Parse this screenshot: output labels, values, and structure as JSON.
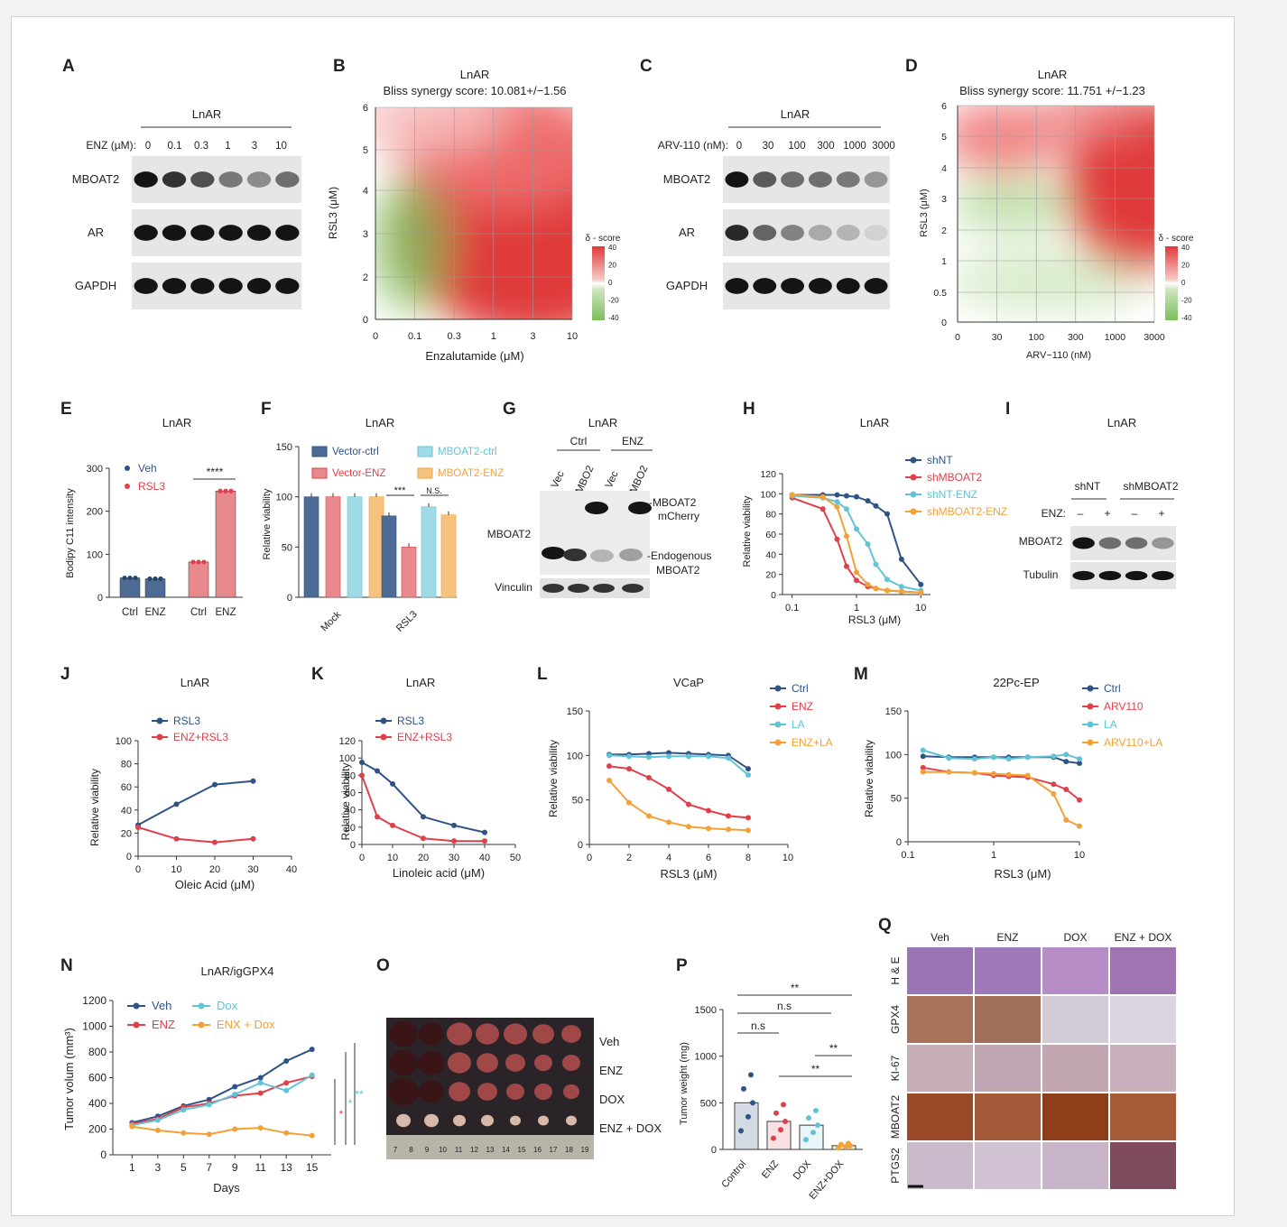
{
  "colors": {
    "navy": "#2f5385",
    "red": "#e0404a",
    "cyan": "#62c3d4",
    "orange": "#f2a136",
    "heat_red": "#e03a3a",
    "heat_green": "#7cbf5a"
  },
  "panels": {
    "A": {
      "letter": "A",
      "header": "LnAR",
      "conc_label": "ENZ (µM):",
      "concs": [
        "0",
        "0.1",
        "0.3",
        "1",
        "3",
        "10"
      ],
      "rows": [
        "MBOAT2",
        "AR",
        "GAPDH"
      ],
      "band": {
        "MBOAT2": [
          1.0,
          0.85,
          0.7,
          0.5,
          0.4,
          0.55
        ],
        "AR": [
          1,
          1,
          1,
          1,
          1,
          1
        ],
        "GAPDH": [
          1,
          1,
          1,
          1,
          1,
          1
        ]
      }
    },
    "B": {
      "letter": "B",
      "title": "LnAR",
      "subtitle": "Bliss synergy score: 10.081+/−1.56",
      "ylabel": "RSL3 (μM)",
      "xlabel": "Enzalutamide (μM)",
      "yticks": [
        "0",
        "2",
        "3",
        "4",
        "5",
        "6"
      ],
      "xticks": [
        "0",
        "0.1",
        "0.3",
        "1",
        "3",
        "10"
      ],
      "legend_title": "δ - score",
      "legend_ticks": [
        "40",
        "20",
        "0",
        "-20",
        "-40"
      ]
    },
    "C": {
      "letter": "C",
      "header": "LnAR",
      "conc_label": "ARV-110 (nM):",
      "concs": [
        "0",
        "30",
        "100",
        "300",
        "1000",
        "3000"
      ],
      "rows": [
        "MBOAT2",
        "AR",
        "GAPDH"
      ],
      "band": {
        "MBOAT2": [
          1.0,
          0.65,
          0.55,
          0.55,
          0.5,
          0.35
        ],
        "AR": [
          0.9,
          0.6,
          0.45,
          0.25,
          0.2,
          0.05
        ],
        "GAPDH": [
          1,
          1,
          1,
          1,
          1,
          1
        ]
      }
    },
    "D": {
      "letter": "D",
      "title": "LnAR",
      "subtitle": "Bliss synergy score: 11.751 +/−1.23",
      "ylabel": "RSL3 (μM)",
      "xlabel": "ARV−110 (nM)",
      "yticks": [
        "0",
        "0.5",
        "1",
        "2",
        "3",
        "4",
        "5",
        "6"
      ],
      "xticks": [
        "0",
        "30",
        "100",
        "300",
        "1000",
        "3000"
      ],
      "legend_title": "δ - score",
      "legend_ticks": [
        "40",
        "20",
        "0",
        "-20",
        "-40"
      ]
    },
    "E": {
      "letter": "E",
      "title": "LnAR",
      "ylabel": "Bodipy C11 intensity",
      "legend": [
        "Veh",
        "RSL3"
      ],
      "sig": "****"
    },
    "F": {
      "letter": "F",
      "title": "LnAR",
      "ylabel": "Relative viability",
      "legend": [
        "Vector-ctrl",
        "MBOAT2-ctrl",
        "Vector-ENZ",
        "MBOAT2-ENZ"
      ],
      "sig": [
        "***",
        "N.S."
      ]
    },
    "G": {
      "letter": "G",
      "title": "LnAR",
      "groups": [
        "Ctrl",
        "ENZ"
      ],
      "lanes": [
        "Vec",
        "MBO2",
        "Vec",
        "MBO2"
      ],
      "row_label": "MBOAT2",
      "loading": "Vinculin",
      "ann1": "-MBOAT2",
      "ann1b": "mCherry",
      "ann2": "-Endogenous",
      "ann2b": "MBOAT2"
    },
    "H": {
      "letter": "H",
      "title": "LnAR",
      "xlabel": "RSL3 (μM)",
      "ylabel": "Relative viability",
      "legend": [
        "shNT",
        "shMBOAT2",
        "shNT-ENZ",
        "shMBOAT2-ENZ"
      ]
    },
    "I": {
      "letter": "I",
      "title": "LnAR",
      "groups": [
        "shNT",
        "shMBOAT2"
      ],
      "enz_label": "ENZ:",
      "enz": [
        "–",
        "+",
        "–",
        "+"
      ],
      "rows": [
        "MBOAT2",
        "Tubulin"
      ],
      "band": {
        "MBOAT2": [
          1.0,
          0.55,
          0.55,
          0.35
        ],
        "Tubulin": [
          1,
          1,
          1,
          1
        ]
      }
    },
    "J": {
      "letter": "J",
      "title": "LnAR",
      "xlabel": "Oleic Acid (μM)",
      "ylabel": "Relative viability",
      "legend": [
        "RSL3",
        "ENZ+RSL3"
      ]
    },
    "K": {
      "letter": "K",
      "title": "LnAR",
      "xlabel": "Linoleic acid (μM)",
      "ylabel": "Relative viability",
      "legend": [
        "RSL3",
        "ENZ+RSL3"
      ]
    },
    "L": {
      "letter": "L",
      "title": "VCaP",
      "xlabel": "RSL3 (μM)",
      "ylabel": "Relative viability",
      "legend": [
        "Ctrl",
        "ENZ",
        "LA",
        "ENZ+LA"
      ]
    },
    "M": {
      "letter": "M",
      "title": "22Pc-EP",
      "xlabel": "RSL3 (μM)",
      "ylabel": "Relative viability",
      "legend": [
        "Ctrl",
        "ARV110",
        "LA",
        "ARV110+LA"
      ]
    },
    "N": {
      "letter": "N",
      "title": "LnAR/igGPX4",
      "xlabel": "Days",
      "ylabel": "Tumor volum (mm³)",
      "legend": [
        "Veh",
        "Dox",
        "ENZ",
        "ENX + Dox"
      ]
    },
    "O": {
      "letter": "O",
      "rows": [
        "Veh",
        "ENZ",
        "DOX",
        "ENZ + DOX"
      ],
      "ruler": [
        "7",
        "8",
        "9",
        "10",
        "11",
        "12",
        "13",
        "14",
        "15",
        "16",
        "17",
        "18",
        "19"
      ]
    },
    "P": {
      "letter": "P",
      "ylabel": "Tumor weight (mg)",
      "sig": [
        "**",
        "n.s",
        "n.s",
        "**",
        "**"
      ]
    },
    "Q": {
      "letter": "Q",
      "cols": [
        "Veh",
        "ENZ",
        "DOX",
        "ENZ + DOX"
      ],
      "rows": [
        "H & E",
        "GPX4",
        "KI-67",
        "MBOAT2",
        "PTGS2"
      ]
    }
  },
  "chart_data": [
    {
      "id": "E",
      "type": "bar",
      "categories": [
        "Ctrl",
        "ENZ",
        "Ctrl",
        "ENZ"
      ],
      "series": [
        {
          "name": "Veh",
          "values": [
            45,
            43,
            null,
            null
          ]
        },
        {
          "name": "RSL3",
          "values": [
            null,
            null,
            82,
            247
          ]
        }
      ],
      "ylim": [
        0,
        300
      ],
      "yticks": [
        0,
        100,
        200,
        300
      ]
    },
    {
      "id": "F",
      "type": "bar",
      "categories": [
        "Mock",
        "RSL3"
      ],
      "series": [
        {
          "name": "Vector-ctrl",
          "values": [
            100,
            81
          ]
        },
        {
          "name": "Vector-ENZ",
          "values": [
            100,
            50
          ]
        },
        {
          "name": "MBOAT2-ctrl",
          "values": [
            100,
            90
          ]
        },
        {
          "name": "MBOAT2-ENZ",
          "values": [
            100,
            82
          ]
        }
      ],
      "ylim": [
        0,
        150
      ],
      "yticks": [
        0,
        50,
        100,
        150
      ]
    },
    {
      "id": "H",
      "type": "line",
      "xscale": "log",
      "x": [
        0.1,
        0.3,
        0.5,
        0.7,
        1,
        1.5,
        2,
        3,
        5,
        10
      ],
      "xticks": [
        0.1,
        1,
        10
      ],
      "ylim": [
        0,
        120
      ],
      "yticks": [
        0,
        20,
        40,
        60,
        80,
        100,
        120
      ],
      "series": [
        {
          "name": "shNT",
          "values": [
            99,
            99,
            99,
            98,
            97,
            93,
            88,
            80,
            35,
            10
          ]
        },
        {
          "name": "shMBOAT2",
          "values": [
            96,
            85,
            55,
            28,
            14,
            8,
            6,
            4,
            3,
            2
          ]
        },
        {
          "name": "shNT-ENZ",
          "values": [
            98,
            96,
            92,
            85,
            65,
            50,
            30,
            15,
            8,
            4
          ]
        },
        {
          "name": "shMBOAT2-ENZ",
          "values": [
            99,
            97,
            87,
            58,
            22,
            10,
            6,
            4,
            3,
            2
          ]
        }
      ]
    },
    {
      "id": "J",
      "type": "line",
      "x": [
        0,
        10,
        20,
        30
      ],
      "xticks": [
        0,
        10,
        20,
        30,
        40
      ],
      "ylim": [
        0,
        100
      ],
      "yticks": [
        0,
        20,
        40,
        60,
        80,
        100
      ],
      "series": [
        {
          "name": "RSL3",
          "values": [
            27,
            45,
            62,
            65
          ]
        },
        {
          "name": "ENZ+RSL3",
          "values": [
            25,
            15,
            12,
            15
          ]
        }
      ]
    },
    {
      "id": "K",
      "type": "line",
      "x": [
        0,
        5,
        10,
        20,
        30,
        40
      ],
      "xticks": [
        0,
        10,
        20,
        30,
        40,
        50
      ],
      "ylim": [
        0,
        120
      ],
      "yticks": [
        0,
        20,
        40,
        60,
        80,
        100,
        120
      ],
      "series": [
        {
          "name": "RSL3",
          "values": [
            95,
            85,
            70,
            32,
            22,
            14
          ]
        },
        {
          "name": "ENZ+RSL3",
          "values": [
            80,
            32,
            22,
            7,
            4,
            4
          ]
        }
      ]
    },
    {
      "id": "L",
      "type": "line",
      "x": [
        1,
        2,
        3,
        4,
        5,
        6,
        7,
        8
      ],
      "xticks": [
        0,
        2,
        4,
        6,
        8,
        10
      ],
      "ylim": [
        0,
        150
      ],
      "yticks": [
        0,
        50,
        100,
        150
      ],
      "series": [
        {
          "name": "Ctrl",
          "values": [
            101,
            101,
            102,
            103,
            102,
            101,
            100,
            85
          ]
        },
        {
          "name": "ENZ",
          "values": [
            88,
            85,
            75,
            62,
            45,
            38,
            32,
            30
          ]
        },
        {
          "name": "LA",
          "values": [
            100,
            99,
            98,
            99,
            99,
            99,
            97,
            78
          ]
        },
        {
          "name": "ENZ+LA",
          "values": [
            72,
            47,
            32,
            25,
            20,
            18,
            17,
            16
          ]
        }
      ]
    },
    {
      "id": "M",
      "type": "line",
      "xscale": "log",
      "x": [
        0.15,
        0.3,
        0.6,
        1,
        1.5,
        2.5,
        5,
        7,
        10
      ],
      "xticks": [
        0.1,
        1,
        10
      ],
      "ylim": [
        0,
        150
      ],
      "yticks": [
        0,
        50,
        100,
        150
      ],
      "series": [
        {
          "name": "Ctrl",
          "values": [
            98,
            97,
            97,
            97,
            97,
            97,
            97,
            92,
            90
          ]
        },
        {
          "name": "ARV110",
          "values": [
            85,
            80,
            79,
            76,
            75,
            74,
            66,
            60,
            48
          ]
        },
        {
          "name": "LA",
          "values": [
            105,
            96,
            95,
            97,
            95,
            97,
            98,
            100,
            95
          ]
        },
        {
          "name": "ARV110+LA",
          "values": [
            80,
            80,
            79,
            78,
            77,
            76,
            55,
            25,
            18
          ]
        }
      ]
    },
    {
      "id": "N",
      "type": "line",
      "x": [
        1,
        3,
        5,
        7,
        9,
        11,
        13,
        15
      ],
      "xticks": [
        1,
        3,
        5,
        7,
        9,
        11,
        13,
        15
      ],
      "ylim": [
        0,
        1200
      ],
      "yticks": [
        0,
        200,
        400,
        600,
        800,
        1000,
        1200
      ],
      "series": [
        {
          "name": "Veh",
          "values": [
            250,
            300,
            380,
            430,
            530,
            600,
            730,
            820
          ]
        },
        {
          "name": "ENZ",
          "values": [
            240,
            280,
            370,
            400,
            460,
            480,
            560,
            610
          ]
        },
        {
          "name": "Dox",
          "values": [
            230,
            270,
            350,
            390,
            470,
            560,
            500,
            620
          ]
        },
        {
          "name": "ENX + Dox",
          "values": [
            220,
            190,
            170,
            160,
            200,
            210,
            170,
            150
          ]
        }
      ]
    },
    {
      "id": "P",
      "type": "bar",
      "categories": [
        "Control",
        "ENZ",
        "DOX",
        "ENZ+DOX"
      ],
      "values": [
        500,
        300,
        260,
        40
      ],
      "ylim": [
        0,
        1500
      ],
      "yticks": [
        0,
        500,
        1000,
        1500
      ]
    }
  ]
}
